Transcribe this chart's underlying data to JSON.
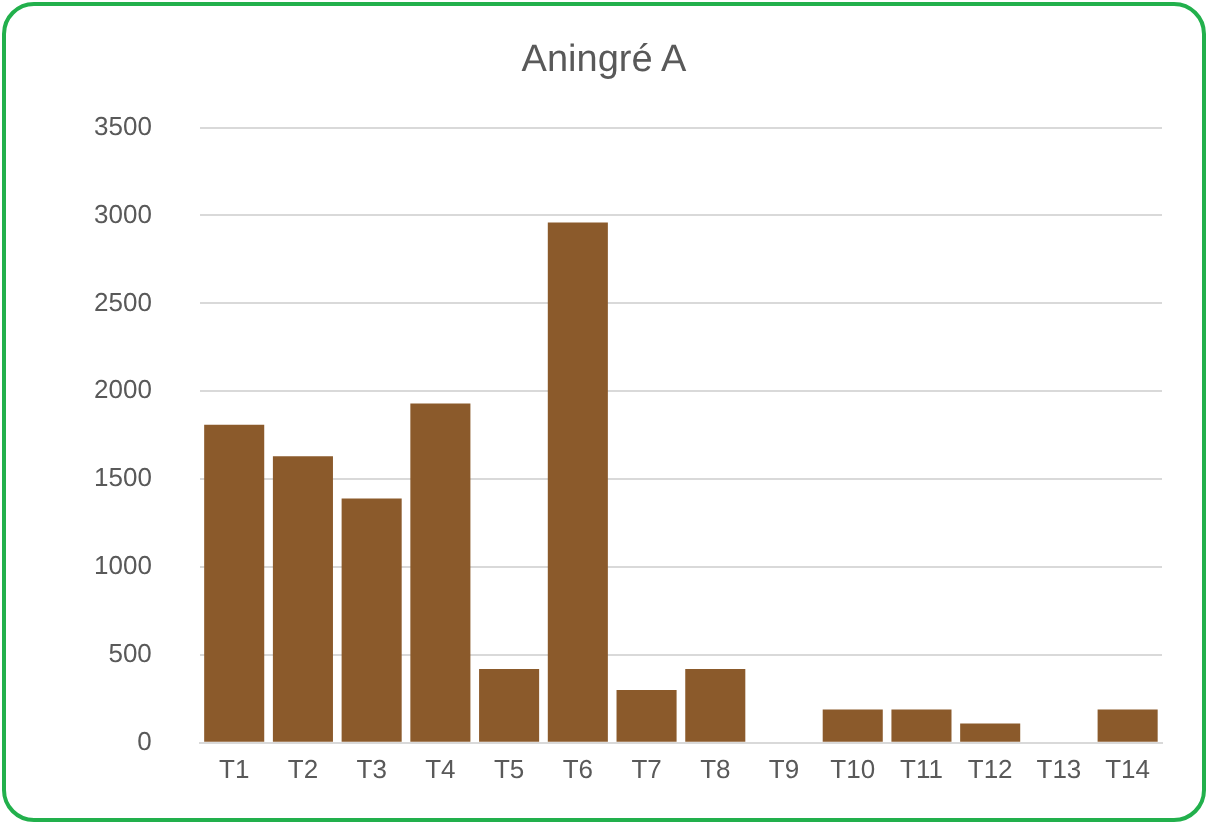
{
  "chart_data": {
    "type": "bar",
    "title": "Aningré A",
    "categories": [
      "T1",
      "T2",
      "T3",
      "T4",
      "T5",
      "T6",
      "T7",
      "T8",
      "T9",
      "T10",
      "T11",
      "T12",
      "T13",
      "T14"
    ],
    "values": [
      1810,
      1630,
      1390,
      1930,
      420,
      2960,
      300,
      420,
      0,
      190,
      190,
      110,
      0,
      190
    ],
    "color": "#8b5a2b",
    "ylim": [
      0,
      3500
    ],
    "yticks": [
      0,
      500,
      1000,
      1500,
      2000,
      2500,
      3000,
      3500
    ],
    "grid": "y",
    "legend": false
  }
}
